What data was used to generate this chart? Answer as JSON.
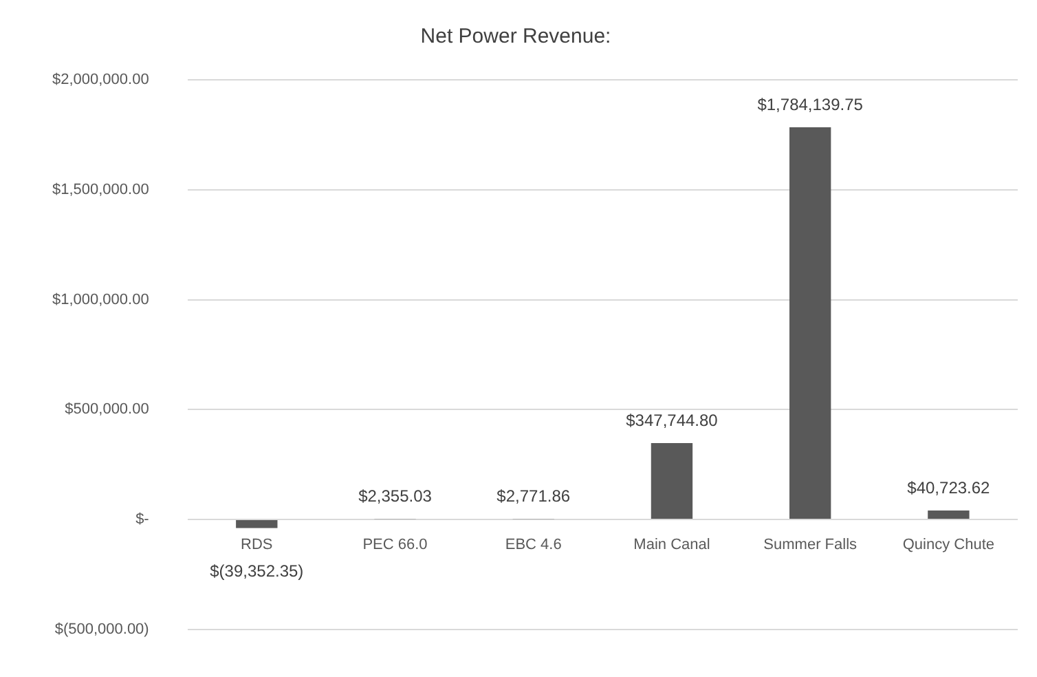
{
  "chart_data": {
    "type": "bar",
    "title": "Net Power Revenue:",
    "categories": [
      "RDS",
      "PEC 66.0",
      "EBC 4.6",
      "Main Canal",
      "Summer Falls",
      "Quincy Chute"
    ],
    "values": [
      -39352.35,
      2355.03,
      2771.86,
      347744.8,
      1784139.75,
      40723.62
    ],
    "value_labels": [
      "$(39,352.35)",
      "$2,355.03",
      "$2,771.86",
      "$347,744.80",
      "$1,784,139.75",
      "$40,723.62"
    ],
    "color": "#595959",
    "ylim": [
      -500000,
      2000000
    ],
    "yticks": [
      {
        "value": -500000,
        "label": "$(500,000.00)"
      },
      {
        "value": 0,
        "label": "$-"
      },
      {
        "value": 500000,
        "label": "$500,000.00"
      },
      {
        "value": 1000000,
        "label": "$1,000,000.00"
      },
      {
        "value": 1500000,
        "label": "$1,500,000.00"
      },
      {
        "value": 2000000,
        "label": "$2,000,000.00"
      }
    ],
    "grid": "y",
    "legend": false
  }
}
